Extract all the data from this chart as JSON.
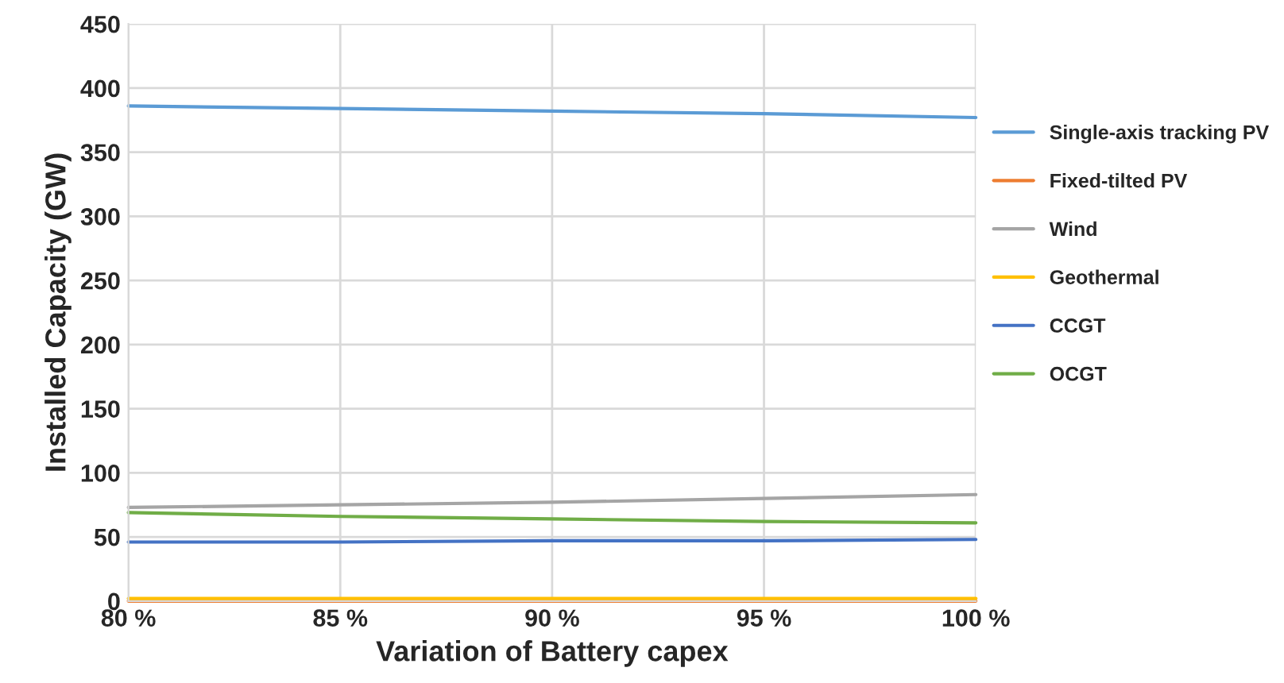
{
  "chart_data": {
    "type": "line",
    "xlabel": "Variation of Battery capex",
    "ylabel": "Installed Capacity (GW)",
    "x": [
      80,
      85,
      90,
      95,
      100
    ],
    "series": [
      {
        "name": "Single-axis tracking PV",
        "color": "#5b9bd5",
        "values": [
          386,
          384,
          382,
          380,
          377
        ]
      },
      {
        "name": "Fixed-tilted PV",
        "color": "#ed7d31",
        "values": [
          0,
          0,
          0,
          0,
          0
        ]
      },
      {
        "name": "Wind",
        "color": "#a5a5a5",
        "values": [
          73,
          75,
          77,
          80,
          83
        ]
      },
      {
        "name": "Geothermal",
        "color": "#ffc000",
        "values": [
          2,
          2,
          2,
          2,
          2
        ]
      },
      {
        "name": "CCGT",
        "color": "#4472c4",
        "values": [
          46,
          46,
          47,
          47,
          48
        ]
      },
      {
        "name": "OCGT",
        "color": "#70ad47",
        "values": [
          69,
          66,
          64,
          62,
          61
        ]
      }
    ],
    "xlim": [
      80,
      100
    ],
    "xticks": [
      {
        "value": 80,
        "label": "80 %"
      },
      {
        "value": 85,
        "label": "85 %"
      },
      {
        "value": 90,
        "label": "90 %"
      },
      {
        "value": 95,
        "label": "95 %"
      },
      {
        "value": 100,
        "label": "100 %"
      }
    ],
    "ylim": [
      0,
      450
    ],
    "yticks": [
      0,
      50,
      100,
      150,
      200,
      250,
      300,
      350,
      400,
      450
    ],
    "grid": true,
    "legend": "right",
    "marker": "none",
    "line_style": "solid"
  }
}
